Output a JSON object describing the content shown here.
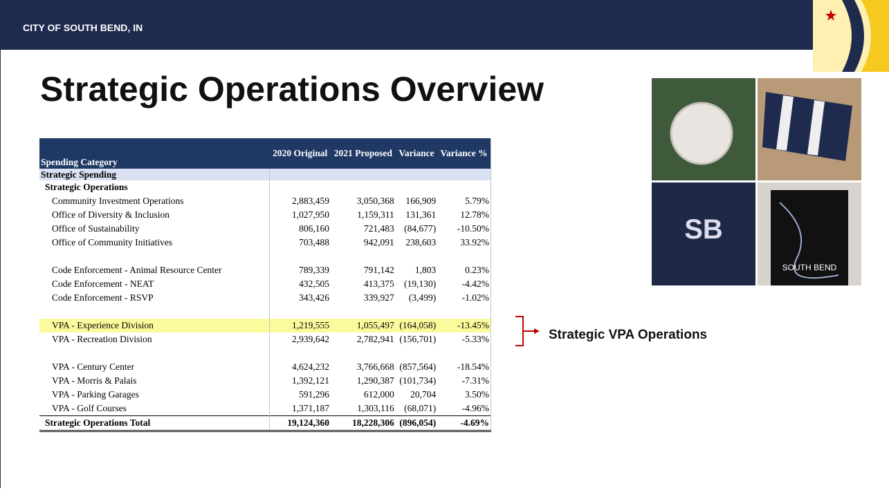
{
  "header": {
    "org": "CITY OF SOUTH BEND, IN"
  },
  "title": "Strategic Operations Overview",
  "table": {
    "columns": [
      "Spending Category",
      "2020 Original",
      "2021 Proposed",
      "Variance",
      "Variance %"
    ],
    "section": "Strategic Spending",
    "subsection": "Strategic Operations",
    "groups": [
      [
        [
          "Community Investment Operations",
          "2,883,459",
          "3,050,368",
          "166,909",
          "5.79%"
        ],
        [
          "Office of Diversity & Inclusion",
          "1,027,950",
          "1,159,311",
          "131,361",
          "12.78%"
        ],
        [
          "Office of Sustainability",
          "806,160",
          "721,483",
          "(84,677)",
          "-10.50%"
        ],
        [
          "Office of Community Initiatives",
          "703,488",
          "942,091",
          "238,603",
          "33.92%"
        ]
      ],
      [
        [
          "Code Enforcement - Animal Resource Center",
          "789,339",
          "791,142",
          "1,803",
          "0.23%"
        ],
        [
          "Code Enforcement - NEAT",
          "432,505",
          "413,375",
          "(19,130)",
          "-4.42%"
        ],
        [
          "Code Enforcement - RSVP",
          "343,426",
          "339,927",
          "(3,499)",
          "-1.02%"
        ]
      ],
      [
        [
          "VPA - Experience Division",
          "1,219,555",
          "1,055,497",
          "(164,058)",
          "-13.45%"
        ],
        [
          "VPA - Recreation Division",
          "2,939,642",
          "2,782,941",
          "(156,701)",
          "-5.33%"
        ]
      ],
      [
        [
          "VPA - Century Center",
          "4,624,232",
          "3,766,668",
          "(857,564)",
          "-18.54%"
        ],
        [
          "VPA - Morris & Palais",
          "1,392,121",
          "1,290,387",
          "(101,734)",
          "-7.31%"
        ],
        [
          "VPA - Parking Garages",
          "591,296",
          "612,000",
          "20,704",
          "3.50%"
        ],
        [
          "VPA - Golf Courses",
          "1,371,187",
          "1,303,116",
          "(68,071)",
          "-4.96%"
        ]
      ]
    ],
    "total": [
      "Strategic Operations Total",
      "19,124,360",
      "18,228,306",
      "(896,054)",
      "-4.69%"
    ]
  },
  "annotation": "Strategic VPA Operations",
  "photos": {
    "shirt": "SB",
    "poster": "SOUTH BEND"
  }
}
